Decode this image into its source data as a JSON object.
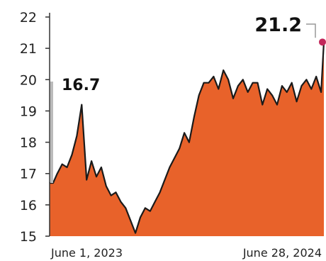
{
  "chart_data": {
    "type": "area",
    "title": "",
    "xlabel": "",
    "ylabel": "",
    "ylim": [
      15,
      22
    ],
    "y_ticks": [
      "15",
      "16",
      "17",
      "18",
      "19",
      "20",
      "21",
      "22"
    ],
    "x_tick_labels": [
      "June 1, 2023",
      "June 28, 2024"
    ],
    "x_range": [
      "2023-06-01",
      "2024-06-28"
    ],
    "grid": false,
    "legend": "none",
    "series": [
      {
        "x": [
          "2023-06-01",
          "2023-06-06",
          "2023-06-12",
          "2023-06-19",
          "2023-06-26",
          "2023-07-03",
          "2023-07-10",
          "2023-07-17",
          "2023-07-24",
          "2023-07-31",
          "2023-08-07",
          "2023-08-14",
          "2023-08-21",
          "2023-08-28",
          "2023-09-04",
          "2023-09-11",
          "2023-09-18",
          "2023-09-25",
          "2023-10-02",
          "2023-10-09",
          "2023-10-16",
          "2023-10-23",
          "2023-10-30",
          "2023-11-06",
          "2023-11-13",
          "2023-11-20",
          "2023-11-27",
          "2023-12-04",
          "2023-12-11",
          "2023-12-18",
          "2023-12-25",
          "2024-01-01",
          "2024-01-08",
          "2024-01-15",
          "2024-01-22",
          "2024-01-29",
          "2024-02-05",
          "2024-02-12",
          "2024-02-19",
          "2024-02-26",
          "2024-03-04",
          "2024-03-11",
          "2024-03-18",
          "2024-03-25",
          "2024-04-01",
          "2024-04-08",
          "2024-04-15",
          "2024-04-22",
          "2024-04-29",
          "2024-05-06",
          "2024-05-13",
          "2024-05-20",
          "2024-05-27",
          "2024-06-03",
          "2024-06-10",
          "2024-06-17",
          "2024-06-24",
          "2024-06-28"
        ],
        "values": [
          16.7,
          16.7,
          17.0,
          17.3,
          17.2,
          17.6,
          18.2,
          19.2,
          16.8,
          17.4,
          16.9,
          17.2,
          16.6,
          16.3,
          16.4,
          16.1,
          15.9,
          15.5,
          15.1,
          15.6,
          15.9,
          15.8,
          16.1,
          16.4,
          16.8,
          17.2,
          17.5,
          17.8,
          18.3,
          18.0,
          18.8,
          19.5,
          19.9,
          19.9,
          20.1,
          19.7,
          20.3,
          20.0,
          19.4,
          19.8,
          20.0,
          19.6,
          19.9,
          19.9,
          19.2,
          19.7,
          19.5,
          19.2,
          19.8,
          19.6,
          19.9,
          19.3,
          19.8,
          20.0,
          19.7,
          20.1,
          19.6,
          21.2
        ]
      }
    ],
    "annotations": [
      {
        "label": "16.7",
        "x": "2023-06-01",
        "y": 16.7
      },
      {
        "label": "21.2",
        "x": "2024-06-28",
        "y": 21.2
      }
    ],
    "colors": {
      "area": "#e8622a",
      "line": "#1a1a1a",
      "endpoint": "#c2275a",
      "axis": "#333333"
    }
  }
}
